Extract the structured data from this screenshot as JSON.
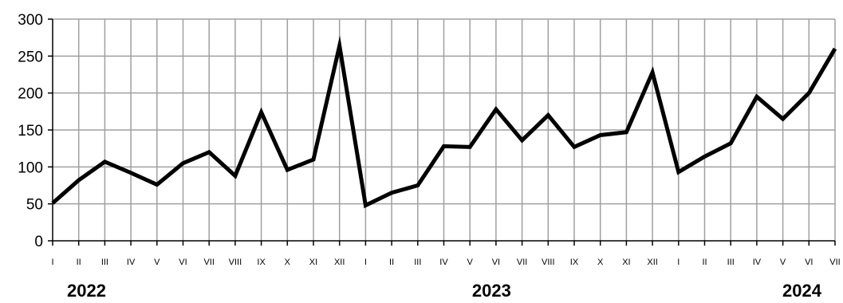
{
  "chart_data": {
    "type": "line",
    "ylim": [
      0,
      300
    ],
    "yticks": [
      0,
      50,
      100,
      150,
      200,
      250,
      300
    ],
    "grid": true,
    "categories": [
      "I",
      "II",
      "III",
      "IV",
      "V",
      "VI",
      "VII",
      "VIII",
      "IX",
      "X",
      "XI",
      "XII",
      "I",
      "II",
      "III",
      "IV",
      "V",
      "VI",
      "VII",
      "VIII",
      "IX",
      "X",
      "XI",
      "XII",
      "I",
      "II",
      "III",
      "IV",
      "V",
      "VI",
      "VII"
    ],
    "year_labels": [
      {
        "label": "2022",
        "start_index": 0
      },
      {
        "label": "2023",
        "start_index": 12
      },
      {
        "label": "2024",
        "start_index": 24
      }
    ],
    "series": [
      {
        "values": [
          51,
          82,
          107,
          92,
          76,
          105,
          120,
          88,
          174,
          96,
          110,
          264,
          48,
          65,
          75,
          128,
          127,
          178,
          136,
          170,
          127,
          143,
          147,
          228,
          93,
          114,
          132,
          195,
          165,
          200,
          260
        ]
      }
    ]
  },
  "colors": {
    "line": "#000000",
    "grid": "#a0a0a0",
    "axis": "#000000"
  }
}
